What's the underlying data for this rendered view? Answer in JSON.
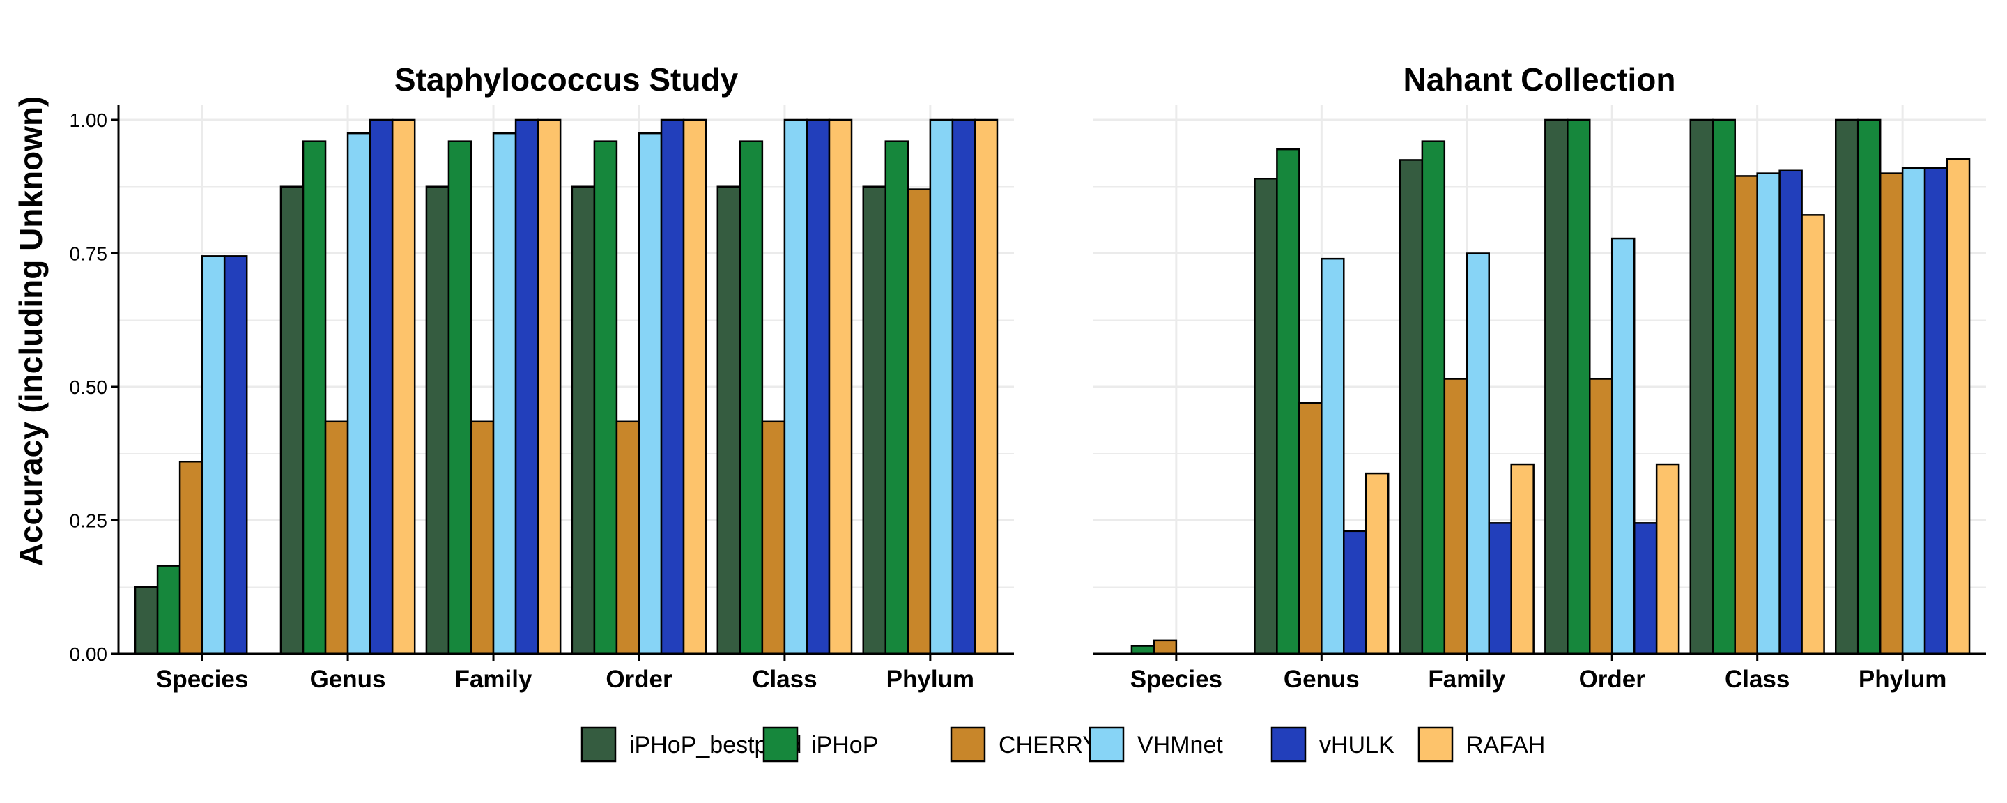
{
  "chart_data": [
    {
      "type": "bar",
      "title": "Staphylococcus Study",
      "ylabel": "Accuracy (including Unknown)",
      "xlabel": "",
      "ylim": [
        0,
        1
      ],
      "yticks": [
        "0.00",
        "0.25",
        "0.50",
        "0.75",
        "1.00"
      ],
      "categories": [
        "Species",
        "Genus",
        "Family",
        "Order",
        "Class",
        "Phylum"
      ],
      "series": [
        {
          "name": "iPHoP_bestpred",
          "values": [
            0.125,
            0.875,
            0.875,
            0.875,
            0.875,
            0.875
          ]
        },
        {
          "name": "iPHoP",
          "values": [
            0.165,
            0.96,
            0.96,
            0.96,
            0.96,
            0.96
          ]
        },
        {
          "name": "CHERRY",
          "values": [
            0.36,
            0.435,
            0.435,
            0.435,
            0.435,
            0.87
          ]
        },
        {
          "name": "VHMnet",
          "values": [
            0.745,
            0.975,
            0.975,
            0.975,
            1.0,
            1.0
          ]
        },
        {
          "name": "vHULK",
          "values": [
            0.745,
            1.0,
            1.0,
            1.0,
            1.0,
            1.0
          ]
        },
        {
          "name": "RAFAH",
          "values": [
            null,
            1.0,
            1.0,
            1.0,
            1.0,
            1.0
          ]
        }
      ],
      "grid": true
    },
    {
      "type": "bar",
      "title": "Nahant Collection",
      "ylabel": "",
      "xlabel": "",
      "ylim": [
        0,
        1
      ],
      "categories": [
        "Species",
        "Genus",
        "Family",
        "Order",
        "Class",
        "Phylum"
      ],
      "series": [
        {
          "name": "iPHoP_bestpred",
          "values": [
            0.0,
            0.89,
            0.925,
            1.0,
            1.0,
            1.0
          ]
        },
        {
          "name": "iPHoP",
          "values": [
            0.015,
            0.945,
            0.96,
            1.0,
            1.0,
            1.0
          ]
        },
        {
          "name": "CHERRY",
          "values": [
            0.025,
            0.47,
            0.515,
            0.515,
            0.895,
            0.9
          ]
        },
        {
          "name": "VHMnet",
          "values": [
            0.0,
            0.74,
            0.75,
            0.778,
            0.9,
            0.91
          ]
        },
        {
          "name": "vHULK",
          "values": [
            0.0,
            0.23,
            0.245,
            0.245,
            0.905,
            0.91
          ]
        },
        {
          "name": "RAFAH",
          "values": [
            0.0,
            0.338,
            0.355,
            0.355,
            0.822,
            0.927
          ]
        }
      ],
      "grid": true
    }
  ],
  "legend": {
    "placement": "bottom",
    "items": [
      {
        "name": "iPHoP_bestpred",
        "color": "#355c40"
      },
      {
        "name": "iPHoP",
        "color": "#16873c"
      },
      {
        "name": "CHERRY",
        "color": "#c8862a"
      },
      {
        "name": "VHMnet",
        "color": "#87d4f6"
      },
      {
        "name": "vHULK",
        "color": "#223fbb"
      },
      {
        "name": "RAFAH",
        "color": "#fdc36b"
      }
    ]
  }
}
